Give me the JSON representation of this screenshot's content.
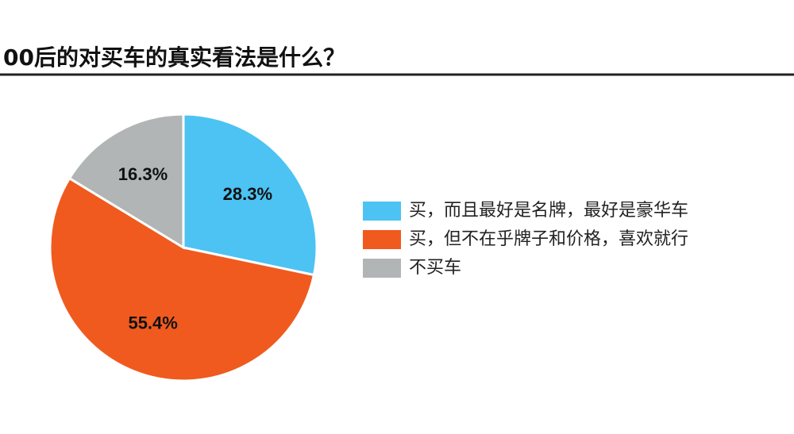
{
  "chart_data": {
    "type": "pie",
    "title": "00后的对买车的真实看法是什么？",
    "categories": [
      "买，而且最好是名牌，最好是豪华车",
      "买，但不在乎牌子和价格，喜欢就行",
      "不买车"
    ],
    "values": [
      28.3,
      55.4,
      16.3
    ],
    "value_labels": [
      "28.3%",
      "55.4%",
      "16.3%"
    ],
    "colors": [
      "#4cc3f2",
      "#f05a1e",
      "#b1b5b6"
    ]
  }
}
